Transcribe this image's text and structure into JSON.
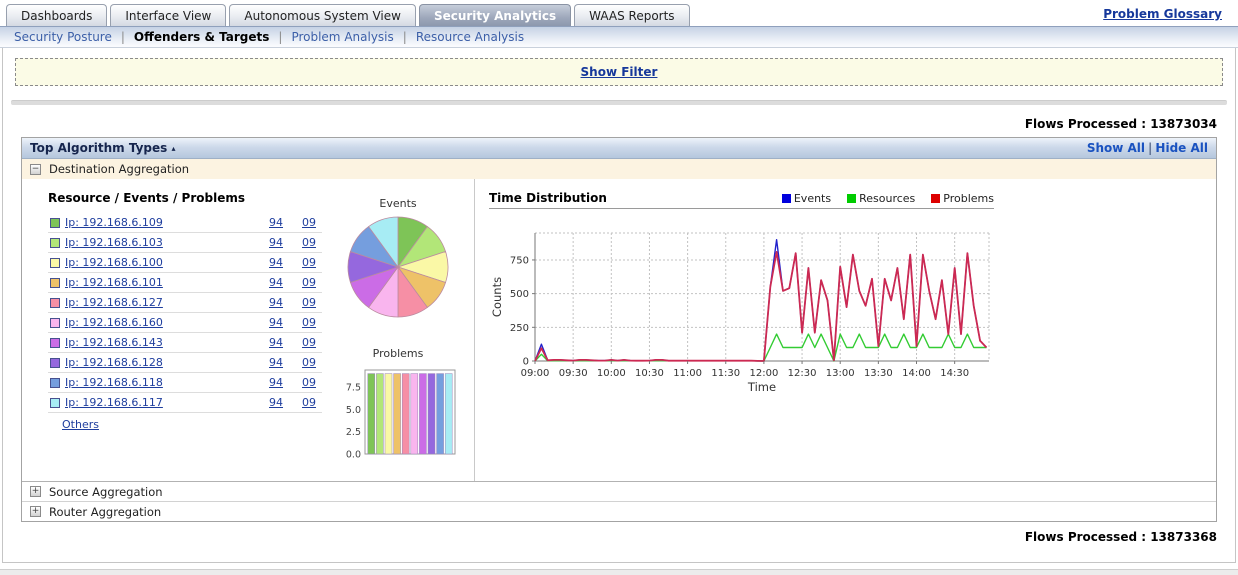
{
  "tabs": [
    {
      "label": "Dashboards",
      "active": false
    },
    {
      "label": "Interface View",
      "active": false
    },
    {
      "label": "Autonomous System View",
      "active": false
    },
    {
      "label": "Security Analytics",
      "active": true
    },
    {
      "label": "WAAS Reports",
      "active": false
    }
  ],
  "links": {
    "problem_glossary": "Problem Glossary"
  },
  "subnav": [
    {
      "label": "Security Posture",
      "active": false
    },
    {
      "label": "Offenders & Targets",
      "active": true
    },
    {
      "label": "Problem Analysis",
      "active": false
    },
    {
      "label": "Resource Analysis",
      "active": false
    }
  ],
  "misc": {
    "separator": "|"
  },
  "filter": {
    "show_filter_label": "Show Filter"
  },
  "flows": {
    "top": "Flows Processed : 13873034",
    "bottom": "Flows Processed : 13873368"
  },
  "section": {
    "title": "Top Algorithm Types",
    "collapse_indicator": "▴",
    "show_all_label": "Show All",
    "hide_all_label": "Hide All"
  },
  "aggregations": [
    {
      "toggle": "−",
      "label": "Destination Aggregation"
    },
    {
      "toggle": "+",
      "label": "Source Aggregation"
    },
    {
      "toggle": "+",
      "label": "Router Aggregation"
    }
  ],
  "resource_panel": {
    "header": "Resource / Events / Problems",
    "others_label": "Others",
    "items": [
      {
        "label": "Ip: 192.168.6.109",
        "color": "#7ec457",
        "events": "94",
        "problems": "09"
      },
      {
        "label": "Ip: 192.168.6.103",
        "color": "#b2e678",
        "events": "94",
        "problems": "09"
      },
      {
        "label": "Ip: 192.168.6.100",
        "color": "#faf8a6",
        "events": "94",
        "problems": "09"
      },
      {
        "label": "Ip: 192.168.6.101",
        "color": "#eec268",
        "events": "94",
        "problems": "09"
      },
      {
        "label": "Ip: 192.168.6.127",
        "color": "#f68fa5",
        "events": "94",
        "problems": "09"
      },
      {
        "label": "Ip: 192.168.6.160",
        "color": "#f9b5ee",
        "events": "94",
        "problems": "09"
      },
      {
        "label": "Ip: 192.168.6.143",
        "color": "#cb6ce6",
        "events": "94",
        "problems": "09"
      },
      {
        "label": "Ip: 192.168.6.128",
        "color": "#9568de",
        "events": "94",
        "problems": "09"
      },
      {
        "label": "Ip: 192.168.6.118",
        "color": "#759ede",
        "events": "94",
        "problems": "09"
      },
      {
        "label": "Ip: 192.168.6.117",
        "color": "#a7ecf4",
        "events": "94",
        "problems": "09"
      }
    ]
  },
  "chart_data": [
    {
      "type": "pie",
      "title": "Events",
      "labels": [
        "Ip: 192.168.6.109",
        "Ip: 192.168.6.103",
        "Ip: 192.168.6.100",
        "Ip: 192.168.6.101",
        "Ip: 192.168.6.127",
        "Ip: 192.168.6.160",
        "Ip: 192.168.6.143",
        "Ip: 192.168.6.128",
        "Ip: 192.168.6.118",
        "Ip: 192.168.6.117"
      ],
      "values": [
        94,
        94,
        94,
        94,
        94,
        94,
        94,
        94,
        94,
        94
      ],
      "colors": [
        "#7ec457",
        "#b2e678",
        "#faf8a6",
        "#eec268",
        "#f68fa5",
        "#f9b5ee",
        "#cb6ce6",
        "#9568de",
        "#759ede",
        "#a7ecf4"
      ]
    },
    {
      "type": "bar",
      "title": "Problems",
      "categories": [
        "Ip: 192.168.6.109",
        "Ip: 192.168.6.103",
        "Ip: 192.168.6.100",
        "Ip: 192.168.6.101",
        "Ip: 192.168.6.127",
        "Ip: 192.168.6.160",
        "Ip: 192.168.6.143",
        "Ip: 192.168.6.128",
        "Ip: 192.168.6.118",
        "Ip: 192.168.6.117"
      ],
      "values": [
        9,
        9,
        9,
        9,
        9,
        9,
        9,
        9,
        9,
        9
      ],
      "colors": [
        "#7ec457",
        "#b2e678",
        "#faf8a6",
        "#eec268",
        "#f68fa5",
        "#f9b5ee",
        "#cb6ce6",
        "#9568de",
        "#759ede",
        "#a7ecf4"
      ],
      "ylim": [
        0,
        9.4
      ],
      "yticks": [
        {
          "v": 0,
          "label": "0.0"
        },
        {
          "v": 2.5,
          "label": "2.5"
        },
        {
          "v": 5,
          "label": "5.0"
        },
        {
          "v": 7.5,
          "label": "7.5"
        }
      ]
    },
    {
      "type": "line",
      "title": "Time Distribution",
      "xlabel": "Time",
      "ylabel": "Counts",
      "grid": true,
      "legend_position": "top-right",
      "xlim": [
        0,
        357
      ],
      "ylim": [
        0,
        950
      ],
      "yticks": [
        {
          "v": 0,
          "label": "0"
        },
        {
          "v": 250,
          "label": "250"
        },
        {
          "v": 500,
          "label": "500"
        },
        {
          "v": 750,
          "label": "750"
        }
      ],
      "xticks": [
        {
          "v": 0,
          "label": "09:00"
        },
        {
          "v": 30,
          "label": "09:30"
        },
        {
          "v": 60,
          "label": "10:00"
        },
        {
          "v": 90,
          "label": "10:30"
        },
        {
          "v": 120,
          "label": "11:00"
        },
        {
          "v": 150,
          "label": "11:30"
        },
        {
          "v": 180,
          "label": "12:00"
        },
        {
          "v": 210,
          "label": "12:30"
        },
        {
          "v": 240,
          "label": "13:00"
        },
        {
          "v": 270,
          "label": "13:30"
        },
        {
          "v": 300,
          "label": "14:00"
        },
        {
          "v": 330,
          "label": "14:30"
        }
      ],
      "x": [
        0,
        5,
        10,
        15,
        20,
        25,
        30,
        35,
        40,
        45,
        50,
        55,
        60,
        65,
        70,
        75,
        80,
        85,
        90,
        95,
        100,
        105,
        110,
        115,
        120,
        125,
        130,
        135,
        140,
        145,
        150,
        155,
        160,
        165,
        170,
        175,
        180,
        185,
        190,
        195,
        200,
        205,
        210,
        215,
        220,
        225,
        230,
        235,
        240,
        245,
        250,
        255,
        260,
        265,
        270,
        275,
        280,
        285,
        290,
        295,
        300,
        305,
        310,
        315,
        320,
        325,
        330,
        335,
        340,
        345,
        350,
        355
      ],
      "series": [
        {
          "name": "Events",
          "color": "#2222cc",
          "y": [
            0,
            125,
            5,
            8,
            8,
            5,
            3,
            8,
            8,
            5,
            3,
            3,
            8,
            3,
            8,
            3,
            2,
            2,
            3,
            8,
            8,
            2,
            2,
            2,
            2,
            2,
            2,
            2,
            2,
            2,
            2,
            2,
            2,
            2,
            2,
            1,
            0,
            550,
            900,
            520,
            540,
            800,
            210,
            690,
            210,
            600,
            450,
            5,
            700,
            400,
            790,
            520,
            410,
            610,
            110,
            610,
            450,
            690,
            310,
            790,
            110,
            790,
            520,
            310,
            600,
            200,
            690,
            200,
            800,
            410,
            150,
            100
          ]
        },
        {
          "name": "Resources",
          "color": "#33cc33",
          "y": [
            0,
            50,
            2,
            2,
            2,
            2,
            2,
            2,
            2,
            2,
            2,
            2,
            2,
            2,
            2,
            2,
            2,
            2,
            2,
            2,
            2,
            2,
            2,
            2,
            2,
            2,
            2,
            2,
            2,
            2,
            2,
            2,
            2,
            2,
            2,
            1,
            0,
            100,
            200,
            100,
            100,
            100,
            100,
            200,
            100,
            200,
            100,
            0,
            200,
            100,
            100,
            200,
            100,
            100,
            100,
            200,
            100,
            100,
            200,
            100,
            100,
            200,
            100,
            100,
            100,
            200,
            100,
            100,
            200,
            100,
            100,
            100
          ]
        },
        {
          "name": "Problems",
          "color": "#cc2952",
          "y": [
            0,
            95,
            5,
            8,
            8,
            5,
            3,
            8,
            8,
            5,
            3,
            3,
            8,
            3,
            8,
            3,
            2,
            2,
            3,
            8,
            8,
            2,
            2,
            2,
            2,
            2,
            2,
            2,
            2,
            2,
            2,
            2,
            2,
            2,
            2,
            1,
            0,
            550,
            810,
            520,
            540,
            800,
            210,
            690,
            210,
            600,
            450,
            5,
            700,
            400,
            790,
            520,
            410,
            610,
            110,
            610,
            450,
            690,
            310,
            790,
            110,
            790,
            520,
            310,
            600,
            200,
            690,
            200,
            800,
            410,
            150,
            100
          ]
        }
      ],
      "legend": [
        {
          "label": "Events",
          "color": "#0000dd"
        },
        {
          "label": "Resources",
          "color": "#00cc00"
        },
        {
          "label": "Problems",
          "color": "#dd0000"
        }
      ]
    }
  ]
}
